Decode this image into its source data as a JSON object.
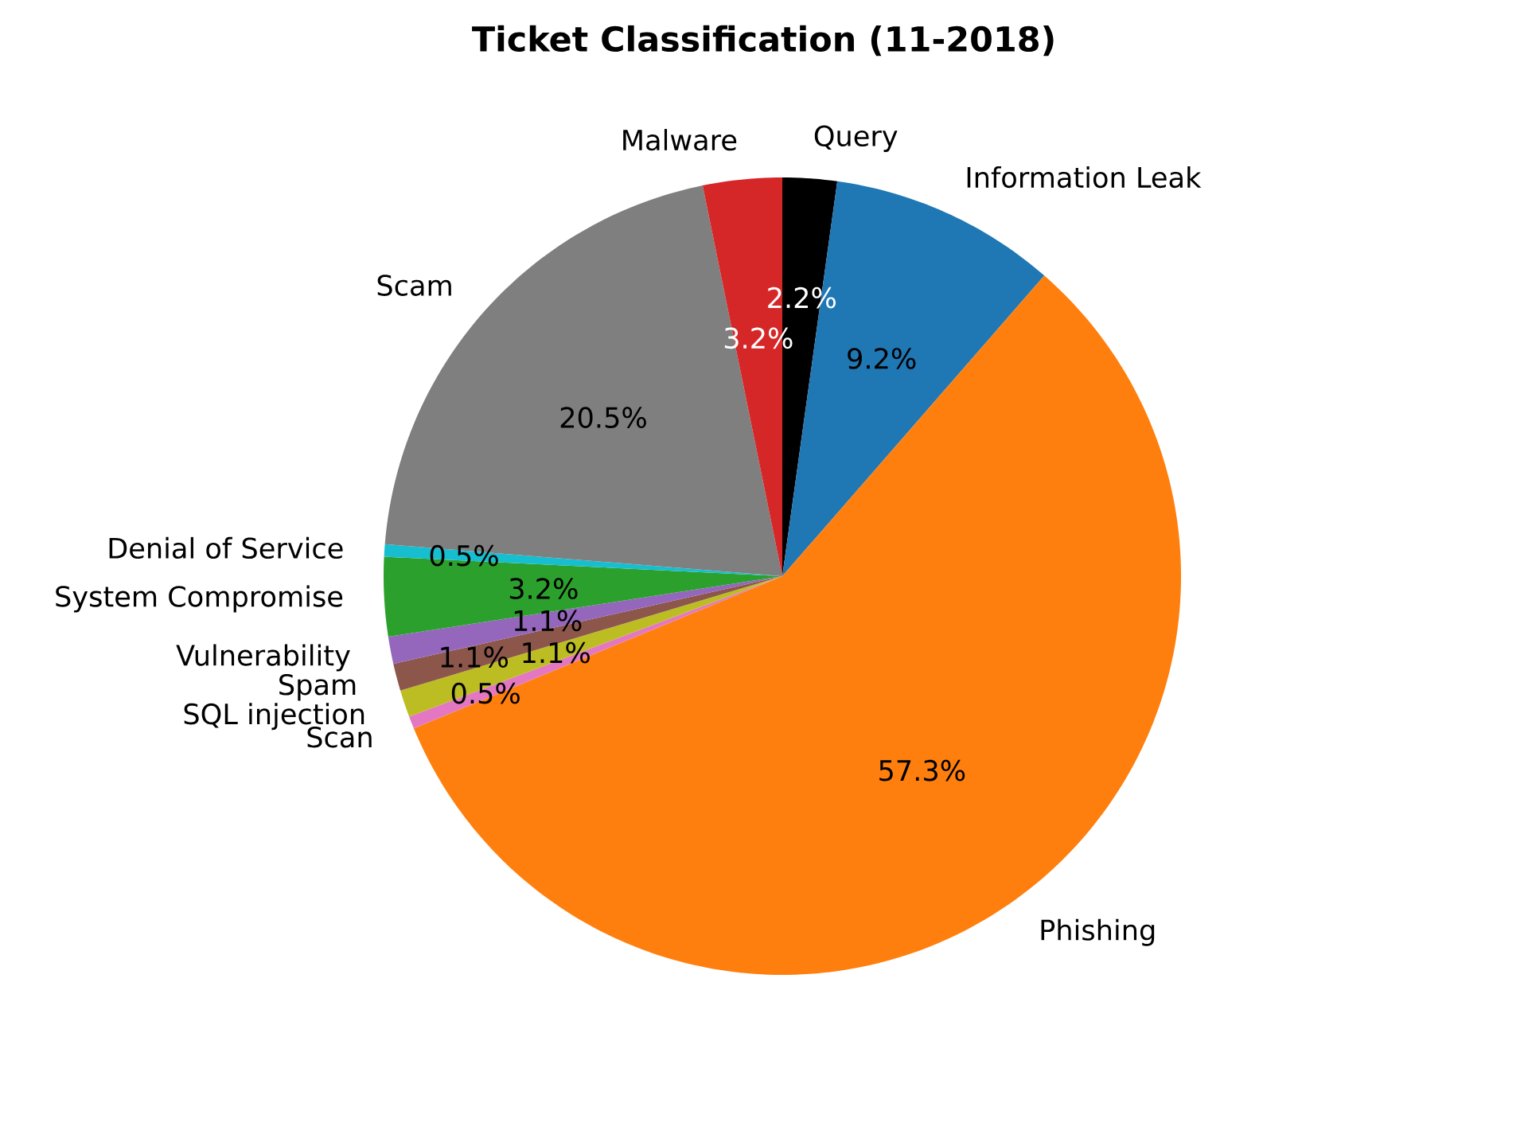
{
  "chart_data": {
    "type": "pie",
    "title": "Ticket Classification (11-2018)",
    "categories": [
      "Query",
      "Information Leak",
      "Phishing",
      "Scan",
      "SQL injection",
      "Spam",
      "Vulnerability",
      "System Compromise",
      "Denial of Service",
      "Scam",
      "Malware"
    ],
    "values": [
      2.2,
      9.2,
      57.3,
      0.5,
      1.1,
      1.1,
      1.1,
      3.2,
      0.5,
      20.5,
      3.2
    ],
    "value_labels": [
      "2.2%",
      "9.2%",
      "57.3%",
      "0.5%",
      "1.1%",
      "1.1%",
      "1.1%",
      "3.2%",
      "0.5%",
      "20.5%",
      "3.2%"
    ],
    "colors": [
      "#000000",
      "#1f77b4",
      "#ff7f0e",
      "#e377c2",
      "#bcbd22",
      "#8c564b",
      "#9467bd",
      "#2ca02c",
      "#17becf",
      "#7f7f7f",
      "#d62728"
    ]
  }
}
